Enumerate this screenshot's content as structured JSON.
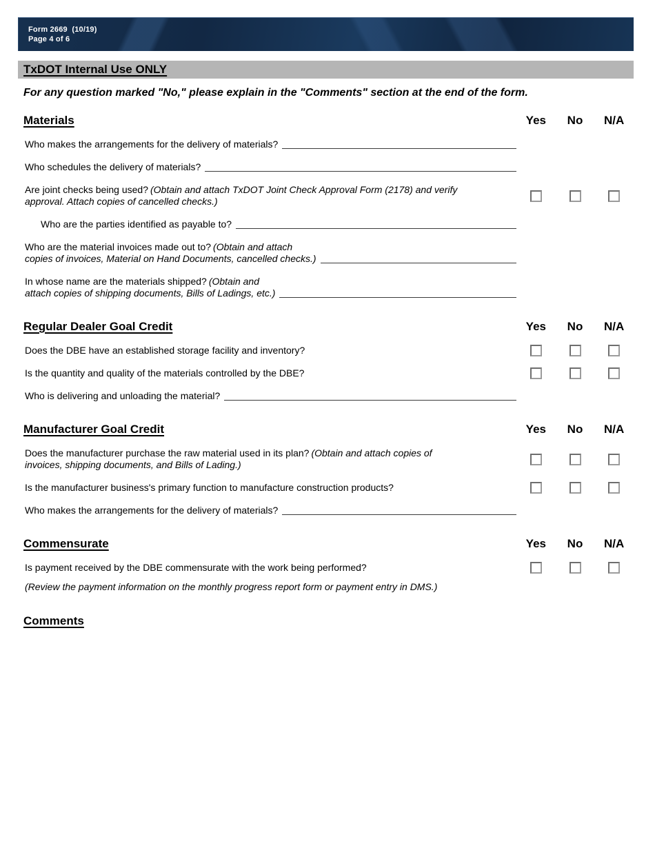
{
  "banner": {
    "form_number": "Form 2669  (10/19)",
    "page_number": "Page 4 of 6"
  },
  "internal_use": {
    "title": "TxDOT Internal Use ONLY"
  },
  "instruction": "For any question marked \"No,\" please explain in the \"Comments\" section at the end of the form.",
  "columns": {
    "yes": "Yes",
    "no": "No",
    "na": "N/A"
  },
  "sections": [
    {
      "title": "Materials",
      "questions": [
        {
          "text": "Who makes the arrangements for the delivery of materials?"
        },
        {
          "text": "Who schedules the delivery of materials?"
        },
        {
          "text": "Are joint checks being used?",
          "note": "(Obtain and attach TxDOT Joint Check Approval Form (2178) and verify\napproval. Attach copies of cancelled checks.)"
        },
        {
          "text": "Who are the parties identified as payable to?"
        },
        {
          "text": "Who are the material invoices made out to?",
          "note": "(Obtain and attach\ncopies of invoices, Material on Hand Documents, cancelled checks.)"
        },
        {
          "text": "In whose name are the materials shipped?",
          "note": "(Obtain and\nattach copies of shipping documents, Bills of Ladings, etc.)"
        }
      ]
    },
    {
      "title": "Regular Dealer Goal Credit",
      "questions": [
        {
          "text": "Does the DBE have an established storage facility and inventory?"
        },
        {
          "text": "Is the quantity and quality of the materials controlled by the DBE?"
        },
        {
          "text": "Who is delivering and unloading the material?"
        }
      ]
    },
    {
      "title": "Manufacturer Goal Credit",
      "questions": [
        {
          "text": "Does the manufacturer purchase the raw material used in its plan?",
          "note": "(Obtain and attach copies of\ninvoices, shipping documents, and Bills of Lading.)"
        },
        {
          "text": "Is the manufacturer business's primary function to manufacture construction products?"
        },
        {
          "text": "Who makes the arrangements for the delivery of materials?"
        }
      ]
    },
    {
      "title": "Commensurate",
      "questions": [
        {
          "text": "Is payment received by the DBE commensurate with the work being performed?"
        }
      ],
      "footnote": "(Review the payment information on the monthly progress report form or payment entry in DMS.)"
    }
  ],
  "comments": {
    "title": "Comments"
  },
  "colors": {
    "banner_navy": "#14304f",
    "internal_bar_gray": "#b5b5b5",
    "checkbox_border": "#6e6e6e",
    "answer_line": "#3a3a3a"
  }
}
